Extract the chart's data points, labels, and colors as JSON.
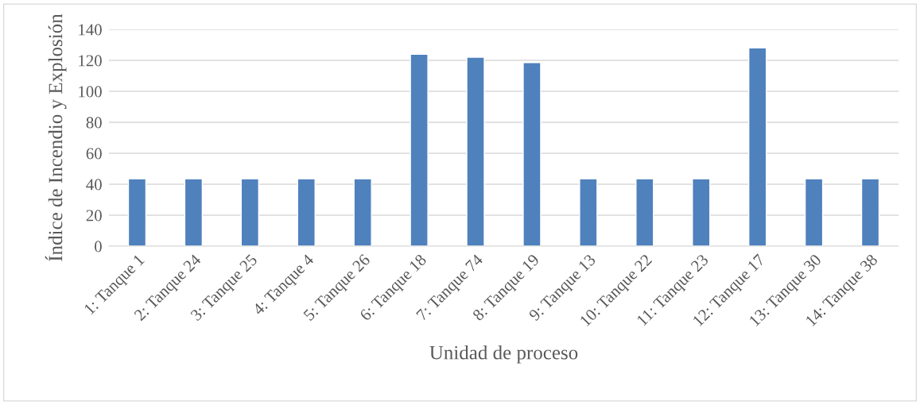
{
  "chart_data": {
    "type": "bar",
    "xlabel": "Unidad de proceso",
    "ylabel": "Índice de Incendio y Explosión",
    "categories": [
      "1: Tanque 1",
      "2: Tanque 24",
      "3: Tanque 25",
      "4: Tanque 4",
      "5: Tanque 26",
      "6: Tanque 18",
      "7: Tanque 74",
      "8: Tanque 19",
      "9: Tanque 13",
      "10: Tanque 22",
      "11: Tanque 23",
      "12: Tanque 17",
      "13: Tanque 30",
      "14: Tanque 38"
    ],
    "values": [
      43.5,
      43.5,
      43.5,
      43.5,
      43.5,
      124,
      122,
      118.5,
      43.5,
      43.5,
      43.5,
      128,
      43.5,
      43.5
    ],
    "color": "#4f81bd",
    "ylim": [
      0,
      140
    ],
    "yticks": [
      0,
      20,
      40,
      60,
      80,
      100,
      120,
      140
    ],
    "grid": "y",
    "legend": false
  }
}
